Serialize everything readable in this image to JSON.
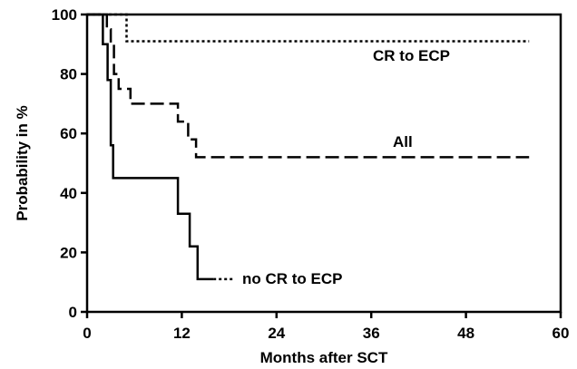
{
  "chart_data": {
    "type": "line",
    "step": true,
    "xlabel": "Months after SCT",
    "ylabel": "Probability in %",
    "xlim": [
      0,
      60
    ],
    "ylim": [
      0,
      100
    ],
    "xticks": [
      0,
      12,
      24,
      36,
      48,
      60
    ],
    "yticks": [
      0,
      20,
      40,
      60,
      80,
      100
    ],
    "grid": false,
    "legend": "inline labels",
    "series": [
      {
        "name": "CR to ECP",
        "dash": "dotted",
        "points": [
          [
            0,
            100
          ],
          [
            5,
            100
          ],
          [
            5,
            91
          ],
          [
            56,
            91
          ]
        ]
      },
      {
        "name": "All",
        "dash": "dashed",
        "points": [
          [
            0,
            100
          ],
          [
            2.5,
            100
          ],
          [
            2.5,
            95
          ],
          [
            3,
            95
          ],
          [
            3,
            90
          ],
          [
            3.4,
            90
          ],
          [
            3.4,
            80
          ],
          [
            4,
            80
          ],
          [
            4,
            75
          ],
          [
            5.5,
            75
          ],
          [
            5.5,
            70
          ],
          [
            11.5,
            70
          ],
          [
            11.5,
            64
          ],
          [
            12.8,
            64
          ],
          [
            12.8,
            58
          ],
          [
            13.8,
            58
          ],
          [
            13.8,
            52
          ],
          [
            56,
            52
          ]
        ]
      },
      {
        "name": "no CR to ECP",
        "dash": "solid",
        "points": [
          [
            0,
            100
          ],
          [
            2,
            100
          ],
          [
            2,
            90
          ],
          [
            2.6,
            90
          ],
          [
            2.6,
            78
          ],
          [
            3,
            78
          ],
          [
            3,
            56
          ],
          [
            3.3,
            56
          ],
          [
            3.3,
            45
          ],
          [
            11.5,
            45
          ],
          [
            11.5,
            33
          ],
          [
            13,
            33
          ],
          [
            13,
            22
          ],
          [
            14,
            22
          ],
          [
            14,
            11
          ],
          [
            16,
            11
          ]
        ],
        "tail": [
          [
            16,
            11
          ],
          [
            18.5,
            11
          ]
        ]
      }
    ]
  }
}
